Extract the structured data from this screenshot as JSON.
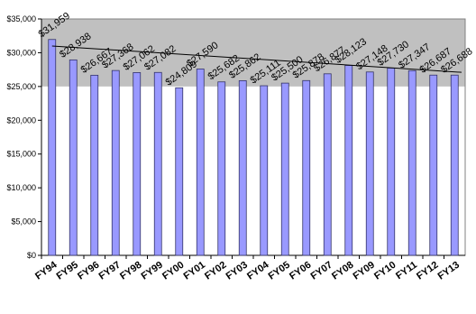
{
  "chart_data": {
    "type": "bar",
    "title": "",
    "xlabel": "",
    "ylabel": "",
    "categories": [
      "FY94",
      "FY95",
      "FY96",
      "FY97",
      "FY98",
      "FY99",
      "FY00",
      "FY01",
      "FY02",
      "FY03",
      "FY04",
      "FY05",
      "FY06",
      "FY07",
      "FY08",
      "FY09",
      "FY10",
      "FY11",
      "FY12",
      "FY13"
    ],
    "values": [
      31959,
      28938,
      26667,
      27368,
      27062,
      27082,
      24809,
      27590,
      25682,
      25862,
      25111,
      25500,
      25878,
      26877,
      28123,
      27148,
      27730,
      27347,
      26687,
      26688
    ],
    "data_labels": [
      "$31,959",
      "$28,938",
      "$26,667",
      "$27,368",
      "$27,062",
      "$27,082",
      "$24,809",
      "$27,590",
      "$25,682",
      "$25,862",
      "$25,111",
      "$25,500",
      "$25,878",
      "$26,877",
      "$28,123",
      "$27,148",
      "$27,730",
      "$27,347",
      "$26,687",
      "$26,688"
    ],
    "ylim": [
      0,
      35000
    ],
    "yticks": [
      0,
      5000,
      10000,
      15000,
      20000,
      25000,
      30000,
      35000
    ],
    "ytick_labels": [
      "$0",
      "$5,000",
      "$10,000",
      "$15,000",
      "$20,000",
      "$25,000",
      "$30,000",
      "$35,000"
    ],
    "trendline": {
      "type": "linear",
      "start": 31000,
      "end": 27100
    },
    "grid": false,
    "legend": "none",
    "colors": {
      "bar_fill": "#9999ff",
      "bar_stroke": "#333366",
      "plot_background": "#c0c0c0",
      "trendline": "#000000"
    }
  }
}
